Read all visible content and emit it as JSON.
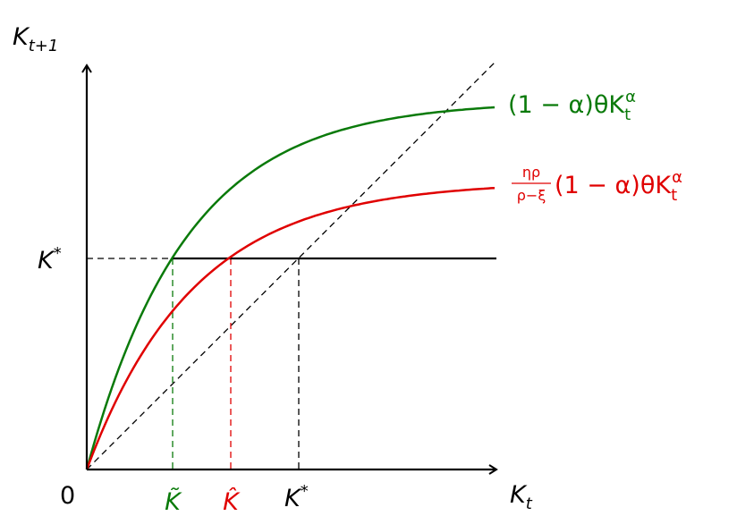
{
  "axes": {
    "y_label": {
      "base": "K",
      "sub": "t+1"
    },
    "x_label": {
      "base": "K",
      "sub": "t"
    },
    "origin": "0"
  },
  "y_ticks": [
    {
      "base": "K",
      "sup": "*"
    }
  ],
  "x_ticks": [
    {
      "base": "K̃"
    },
    {
      "base": "K̂"
    },
    {
      "base": "K",
      "sup": "*"
    }
  ],
  "curves": [
    {
      "label": {
        "pre": "(1 − α)θK",
        "sub": "t",
        "sup": "α"
      }
    },
    {
      "label": {
        "num": "ηρ",
        "den": "ρ−ξ",
        "pre": "(1 − α)θK",
        "sub": "t",
        "sup": "α"
      }
    }
  ]
}
